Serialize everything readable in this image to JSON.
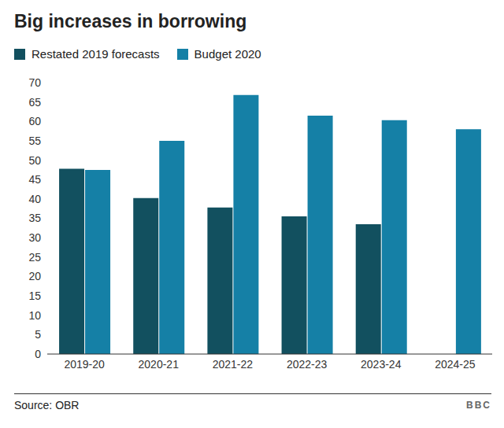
{
  "chart_data": {
    "type": "bar",
    "title": "Big increases in borrowing",
    "categories": [
      "2019-20",
      "2020-21",
      "2021-22",
      "2022-23",
      "2023-24",
      "2024-25"
    ],
    "series": [
      {
        "name": "Restated 2019 forecasts",
        "color": "#12505f",
        "values": [
          47.8,
          40.2,
          37.8,
          35.5,
          33.5,
          null
        ]
      },
      {
        "name": "Budget 2020",
        "color": "#1580a6",
        "values": [
          47.5,
          55,
          66.8,
          61.5,
          60.3,
          58
        ]
      }
    ],
    "ylim": [
      0,
      70
    ],
    "yticks": [
      0,
      5,
      10,
      15,
      20,
      25,
      30,
      35,
      40,
      45,
      50,
      55,
      60,
      65,
      70
    ],
    "grid": false,
    "legend": "top left",
    "annotations": [
      "Source: OBR",
      "BBC"
    ]
  }
}
